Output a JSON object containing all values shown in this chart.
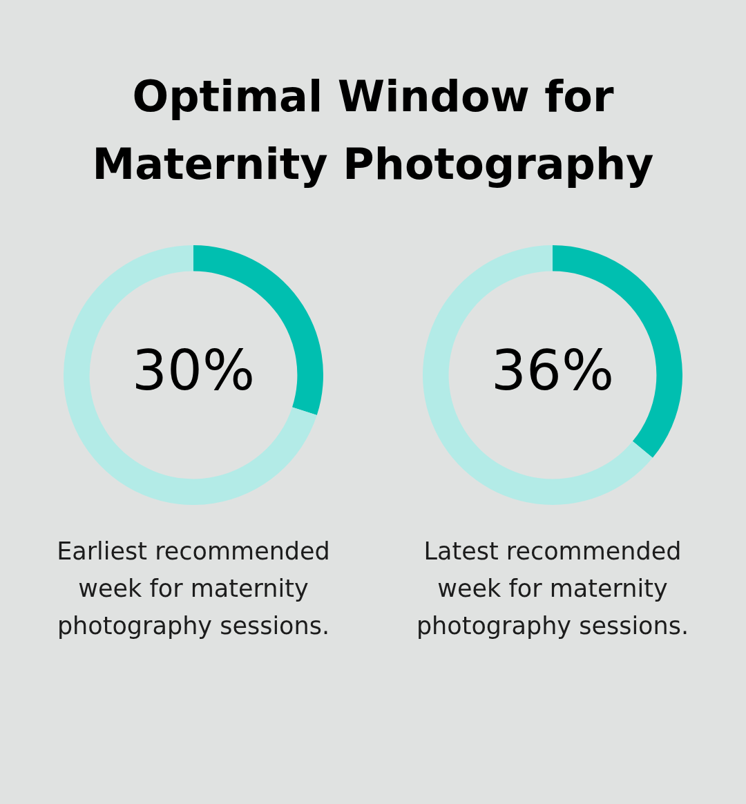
{
  "chart_data": [
    {
      "type": "donut",
      "title": "Optimal Window for Maternity Photography",
      "categories": [
        null,
        null
      ],
      "values": [
        30,
        70
      ],
      "colors": [
        "#00bfb0",
        "#b3ebe7"
      ],
      "value_labels": [
        "30%",
        null
      ],
      "annotations": [
        "Earliest recommended week for maternity photography sessions."
      ]
    },
    {
      "type": "donut",
      "categories": [
        null,
        null
      ],
      "values": [
        36,
        64
      ],
      "colors": [
        "#00bfb0",
        "#b3ebe7"
      ],
      "value_labels": [
        "36%",
        null
      ],
      "annotations": [
        "Latest recommended week for maternity photography sessions."
      ]
    }
  ]
}
